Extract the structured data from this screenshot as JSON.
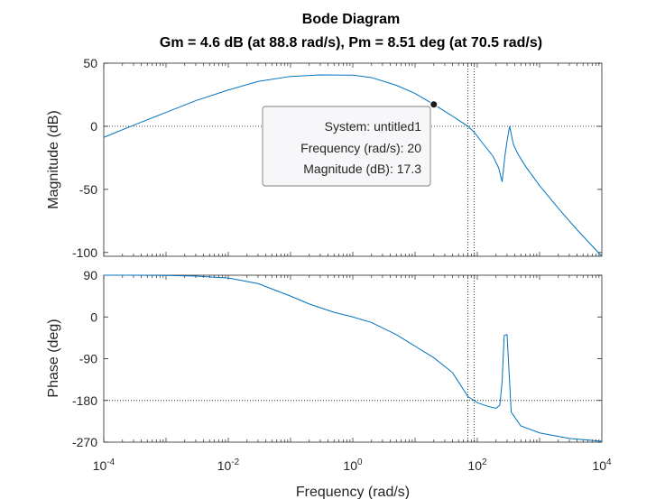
{
  "chart_data": {
    "type": "line",
    "title": "Bode Diagram",
    "subtitle": "Gm = 4.6 dB (at 88.8 rad/s),  Pm = 8.51 deg (at 70.5 rad/s)",
    "xlabel": "Frequency  (rad/s)",
    "x_scale": "log",
    "xlim": [
      0.0001,
      10000
    ],
    "x_ticks": [
      {
        "value": 0.0001,
        "base": "10",
        "exp": "-4"
      },
      {
        "value": 0.01,
        "base": "10",
        "exp": "-2"
      },
      {
        "value": 1,
        "base": "10",
        "exp": "0"
      },
      {
        "value": 100,
        "base": "10",
        "exp": "2"
      },
      {
        "value": 10000,
        "base": "10",
        "exp": "4"
      }
    ],
    "grid": false,
    "line_color": "#0072BD",
    "panels": [
      {
        "name": "magnitude",
        "ylabel": "Magnitude (dB)",
        "ylim": [
          -103,
          50
        ],
        "y_ticks": [
          50,
          0,
          -50,
          -100
        ],
        "reference_lines": [
          0
        ],
        "margin_markers": [
          88.8,
          70.5
        ],
        "x": [
          0.0001,
          0.0003,
          0.001,
          0.003,
          0.01,
          0.03,
          0.1,
          0.3,
          1,
          2,
          5,
          10,
          20,
          40,
          70.5,
          88.8,
          120,
          180,
          220,
          250,
          280,
          300,
          330,
          380,
          450,
          600,
          1000,
          2000,
          4000,
          10000
        ],
        "y": [
          -8.8,
          0.8,
          11.0,
          20.3,
          28.7,
          35.5,
          39.5,
          40.7,
          40.5,
          38.6,
          32.5,
          26.0,
          17.3,
          8.0,
          0.0,
          -4.6,
          -13.0,
          -24.0,
          -33.0,
          -44.0,
          -22.0,
          -12.0,
          0.0,
          -14.5,
          -22.0,
          -32.0,
          -47.0,
          -65.0,
          -82.0,
          -103.0
        ]
      },
      {
        "name": "phase",
        "ylabel": "Phase (deg)",
        "ylim": [
          -270,
          90
        ],
        "y_ticks": [
          90,
          0,
          -90,
          -180,
          -270
        ],
        "reference_lines": [
          -180
        ],
        "margin_markers": [
          88.8,
          70.5
        ],
        "x": [
          0.0001,
          0.0003,
          0.001,
          0.003,
          0.01,
          0.03,
          0.1,
          0.2,
          0.5,
          1,
          2,
          5,
          10,
          20,
          40,
          70.5,
          100,
          150,
          200,
          230,
          250,
          270,
          300,
          330,
          350,
          380,
          500,
          1000,
          3000,
          10000
        ],
        "y": [
          90.0,
          90.0,
          89.5,
          88.0,
          84.0,
          72.0,
          45.0,
          28.0,
          10.0,
          0.0,
          -12.0,
          -38.0,
          -63.0,
          -88.0,
          -120.0,
          -171.5,
          -185.0,
          -193.0,
          -197.0,
          -190.0,
          -140.0,
          -40.0,
          -38.0,
          -140.0,
          -205.0,
          -212.0,
          -235.0,
          -250.0,
          -262.0,
          -268.0
        ]
      }
    ],
    "datatip": {
      "lines": [
        "System: untitled1",
        "Frequency (rad/s): 20",
        "Magnitude (dB): 17.3"
      ],
      "frequency": 20,
      "magnitude_db": 17.3
    }
  }
}
